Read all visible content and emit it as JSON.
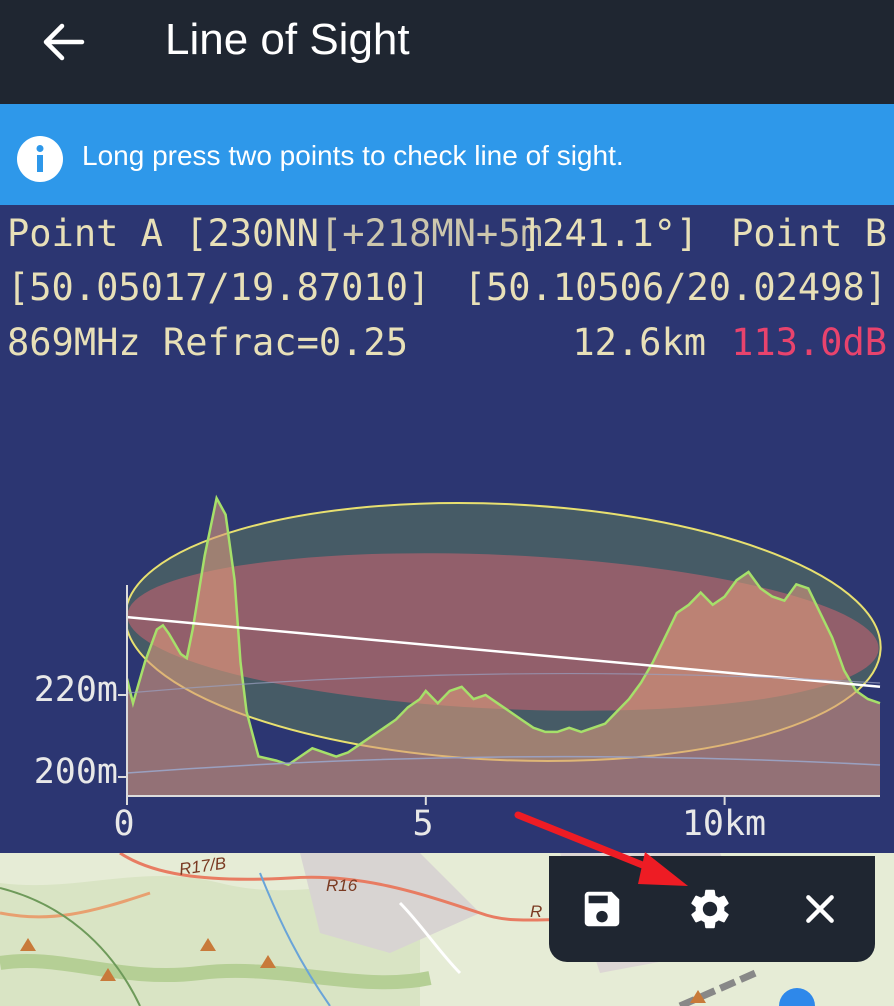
{
  "header": {
    "title": "Line of Sight",
    "back_icon": "arrow-left-icon"
  },
  "banner": {
    "icon": "info-icon",
    "text": "Long press two points to check line of sight."
  },
  "overlay": {
    "row1_left": "Point A [230NN",
    "row1_overlap": "[+218MN+5m",
    "row1_mid": "]241.1°]",
    "row1_right": "Point B",
    "coords_a": "[50.05017/19.87010]",
    "coords_b": "[50.10506/20.02498]",
    "frequency": "869MHz Refrac=0.25",
    "distance": "12.6km",
    "loss": "113.0dB",
    "loss_color": "#e8436d",
    "text_color": "#e8e0b8"
  },
  "chart_data": {
    "type": "area",
    "series": [
      {
        "values_m": [
          [
            0.0,
            224
          ],
          [
            0.1,
            218
          ],
          [
            0.3,
            228
          ],
          [
            0.5,
            236
          ],
          [
            0.6,
            237
          ],
          [
            0.7,
            235
          ],
          [
            0.9,
            230
          ],
          [
            1.0,
            229
          ],
          [
            1.1,
            236
          ],
          [
            1.3,
            254
          ],
          [
            1.5,
            268
          ],
          [
            1.65,
            264
          ],
          [
            1.8,
            248
          ],
          [
            1.9,
            228
          ],
          [
            2.0,
            216
          ],
          [
            2.2,
            205
          ],
          [
            2.5,
            204
          ],
          [
            2.7,
            203
          ],
          [
            2.9,
            205
          ],
          [
            3.1,
            207
          ],
          [
            3.3,
            206
          ],
          [
            3.5,
            205
          ],
          [
            3.7,
            206
          ],
          [
            3.9,
            208
          ],
          [
            4.1,
            210
          ],
          [
            4.3,
            212
          ],
          [
            4.5,
            214
          ],
          [
            4.7,
            217
          ],
          [
            4.9,
            219
          ],
          [
            5.0,
            221
          ],
          [
            5.2,
            218
          ],
          [
            5.4,
            221
          ],
          [
            5.6,
            222
          ],
          [
            5.8,
            219
          ],
          [
            6.0,
            220
          ],
          [
            6.2,
            218
          ],
          [
            6.4,
            216
          ],
          [
            6.6,
            214
          ],
          [
            6.8,
            212
          ],
          [
            7.0,
            211
          ],
          [
            7.2,
            211
          ],
          [
            7.4,
            212
          ],
          [
            7.6,
            211
          ],
          [
            7.8,
            212
          ],
          [
            8.0,
            213
          ],
          [
            8.2,
            216
          ],
          [
            8.4,
            219
          ],
          [
            8.6,
            223
          ],
          [
            8.8,
            228
          ],
          [
            9.0,
            234
          ],
          [
            9.2,
            240
          ],
          [
            9.4,
            242
          ],
          [
            9.6,
            245
          ],
          [
            9.8,
            242
          ],
          [
            10.0,
            244
          ],
          [
            10.2,
            248
          ],
          [
            10.4,
            250
          ],
          [
            10.6,
            246
          ],
          [
            10.8,
            244
          ],
          [
            11.0,
            243
          ],
          [
            11.2,
            247
          ],
          [
            11.4,
            246
          ],
          [
            11.6,
            240
          ],
          [
            11.8,
            234
          ],
          [
            12.0,
            226
          ],
          [
            12.2,
            221
          ],
          [
            12.4,
            219
          ],
          [
            12.6,
            218
          ]
        ],
        "name": ""
      }
    ],
    "x_ticks": [
      "0",
      "5",
      "10km"
    ],
    "y_ticks": [
      "200m",
      "220m"
    ],
    "xlim": [
      0,
      12.6
    ],
    "ylim": [
      195,
      270
    ],
    "los_line": {
      "start_m": 239,
      "end_m": 222
    },
    "fresnel": "ellipse between points A and B"
  },
  "toolbar": {
    "save_icon": "save-icon",
    "settings_icon": "gear-icon",
    "close_icon": "close-icon"
  },
  "map": {
    "labels": [
      "R17/B",
      "R16",
      "R"
    ]
  }
}
